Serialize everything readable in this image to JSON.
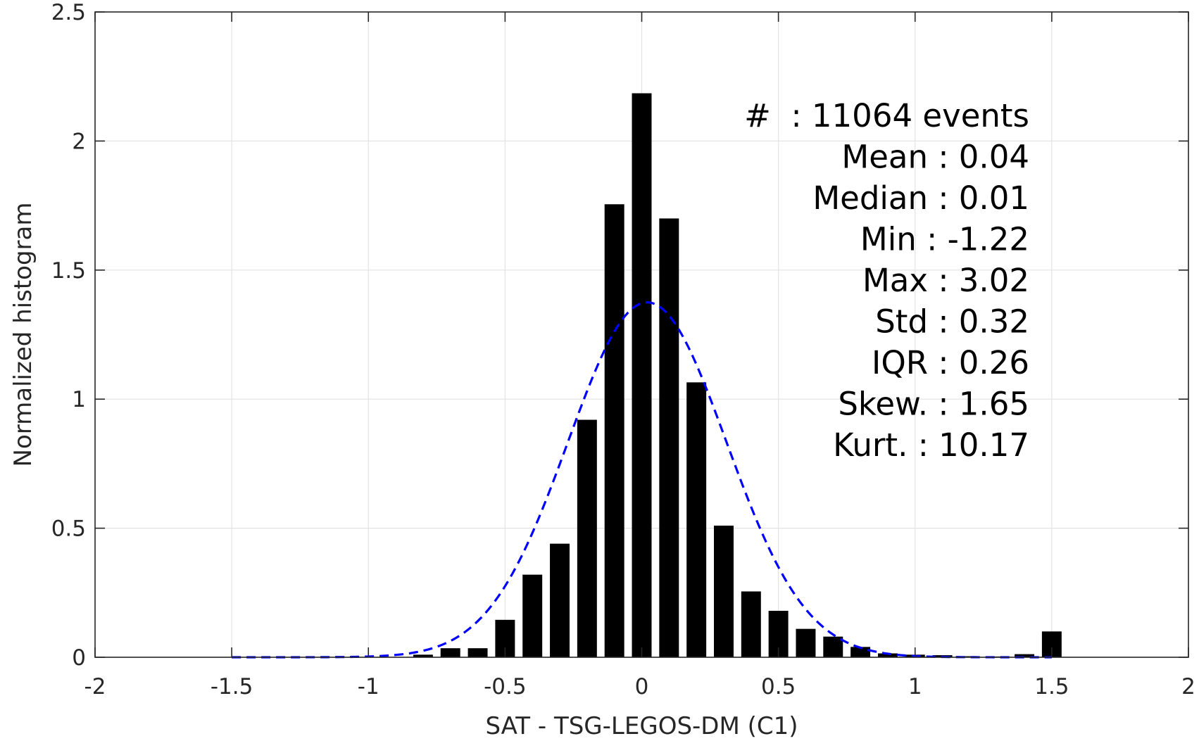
{
  "chart_data": {
    "type": "bar",
    "xlabel": "SAT - TSG-LEGOS-DM (C1)",
    "ylabel": "Normalized histogram",
    "xlim": [
      -2,
      2
    ],
    "ylim": [
      0,
      2.5
    ],
    "xticks": [
      -2,
      -1.5,
      -1,
      -0.5,
      0,
      0.5,
      1,
      1.5,
      2
    ],
    "yticks": [
      0,
      0.5,
      1,
      1.5,
      2,
      2.5
    ],
    "xtick_labels": [
      "-2",
      "-1.5",
      "-1",
      "-0.5",
      "0",
      "0.5",
      "1",
      "1.5",
      "2"
    ],
    "ytick_labels": [
      "0",
      "0.5",
      "1",
      "1.5",
      "2",
      "2.5"
    ],
    "grid": true,
    "bin_width": 0.1,
    "bars": {
      "color": "#000000",
      "x": [
        -0.8,
        -0.7,
        -0.6,
        -0.5,
        -0.4,
        -0.3,
        -0.2,
        -0.1,
        0.0,
        0.1,
        0.2,
        0.3,
        0.4,
        0.5,
        0.6,
        0.7,
        0.8,
        0.9,
        1.0,
        1.1,
        1.2,
        1.3,
        1.4,
        1.5
      ],
      "values": [
        0.01,
        0.035,
        0.035,
        0.145,
        0.32,
        0.44,
        0.92,
        1.755,
        2.185,
        1.7,
        1.065,
        0.51,
        0.255,
        0.18,
        0.11,
        0.08,
        0.04,
        0.015,
        0.01,
        0.008,
        0.004,
        0.003,
        0.012,
        0.1
      ]
    },
    "fit": {
      "type": "gaussian",
      "style": "dashed",
      "color": "#0000ff",
      "x_range": [
        -1.5,
        1.5
      ],
      "mean": 0.02,
      "std": 0.29,
      "peak": 1.375
    },
    "stats": [
      {
        "label": "#",
        "value": "11064 events",
        "sep": "  : "
      },
      {
        "label": "Mean",
        "value": "0.04",
        "sep": " : "
      },
      {
        "label": "Median",
        "value": "0.01",
        "sep": " : "
      },
      {
        "label": "Min",
        "value": "-1.22",
        "sep": " : "
      },
      {
        "label": "Max",
        "value": "3.02",
        "sep": " : "
      },
      {
        "label": "Std",
        "value": "0.32",
        "sep": " : "
      },
      {
        "label": "IQR",
        "value": "0.26",
        "sep": " : "
      },
      {
        "label": "Skew.",
        "value": "1.65",
        "sep": " : "
      },
      {
        "label": "Kurt.",
        "value": "10.17",
        "sep": " : "
      }
    ]
  }
}
